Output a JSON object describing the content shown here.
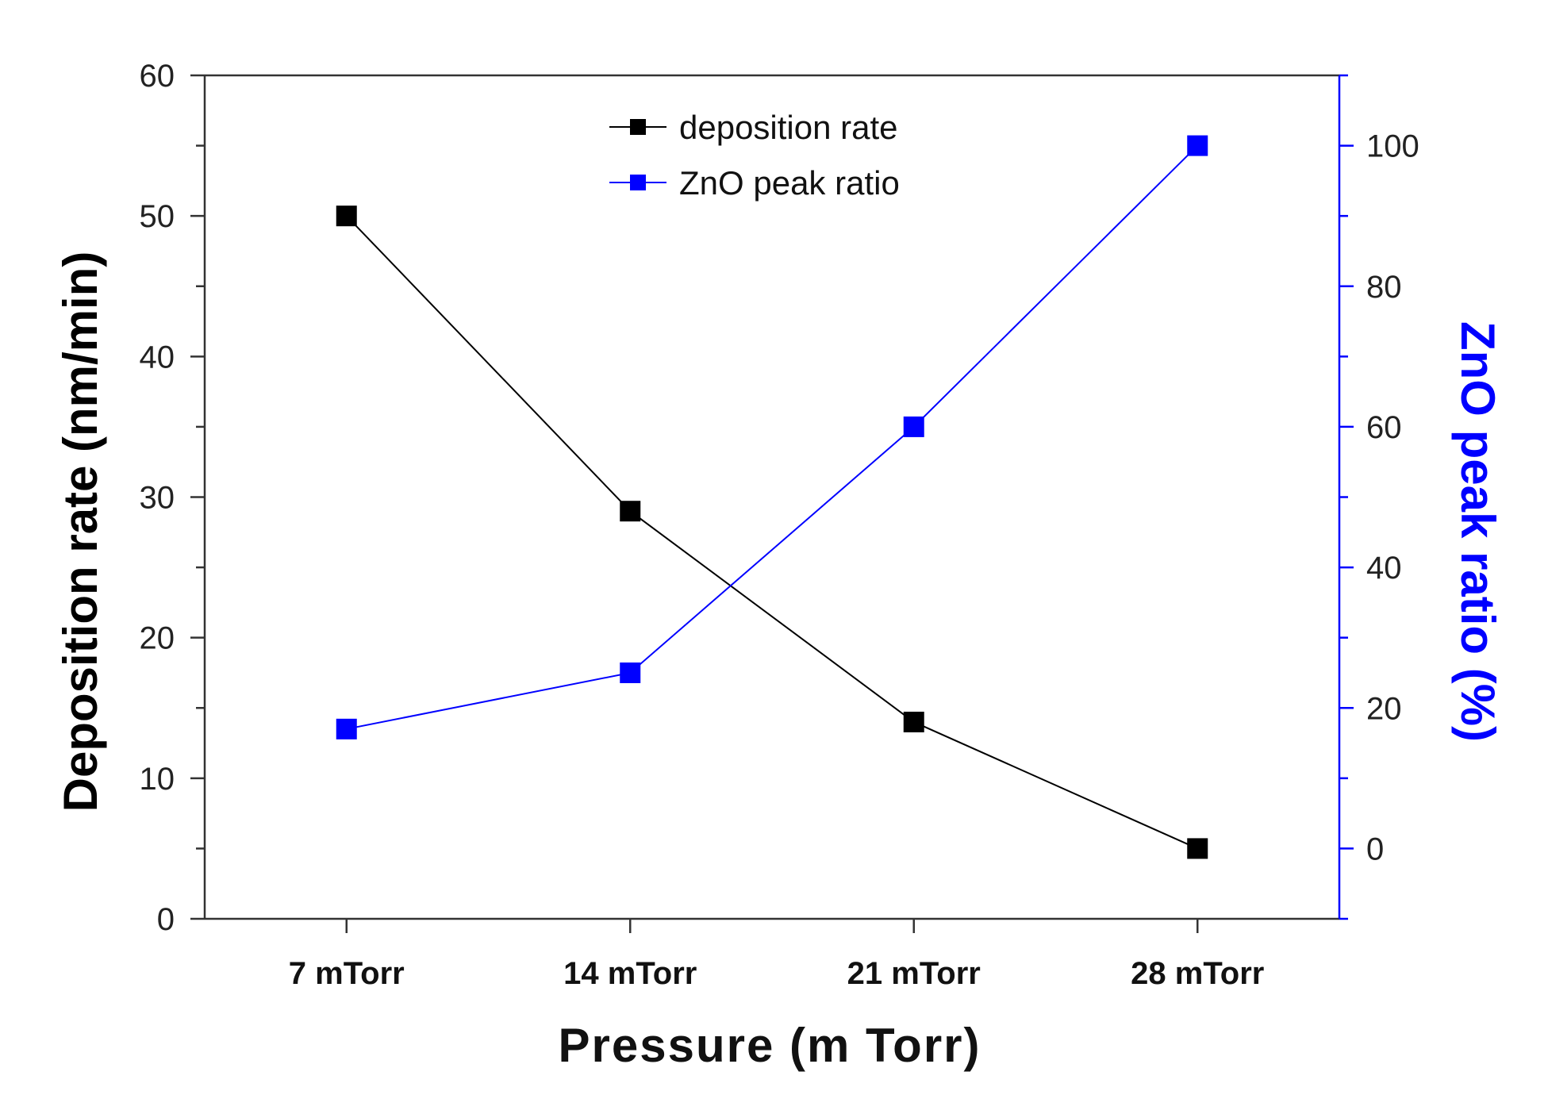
{
  "chart_data": {
    "type": "line",
    "title": "",
    "xlabel": "Pressure (m Torr)",
    "ylabel": "Deposition rate (nm/min)",
    "y2label": "ZnO peak ratio (%)",
    "categories": [
      "7 mTorr",
      "14 mTorr",
      "21 mTorr",
      "28 mTorr"
    ],
    "ylim": [
      0,
      60
    ],
    "yticks": [
      0,
      10,
      20,
      30,
      40,
      50,
      60
    ],
    "y2lim": [
      -10,
      110
    ],
    "y2ticks": [
      0,
      20,
      40,
      60,
      80,
      100
    ],
    "legend_position": "top-center",
    "grid": false,
    "series": [
      {
        "name": "deposition rate",
        "axis": "left",
        "color": "#000000",
        "values": [
          50,
          29,
          14,
          5
        ]
      },
      {
        "name": "ZnO peak ratio",
        "axis": "right",
        "color": "#0000ff",
        "values": [
          17,
          25,
          60,
          100
        ]
      }
    ]
  }
}
